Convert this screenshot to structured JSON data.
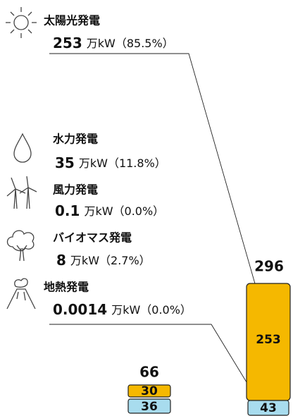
{
  "items": [
    {
      "name": "太陽光発電",
      "value": "253",
      "unit": "万kW",
      "share": "（85.5%）"
    },
    {
      "name": "水力発電",
      "value": "35",
      "unit": "万kW",
      "share": "（11.8%）"
    },
    {
      "name": "風力発電",
      "value": "0.1",
      "unit": "万kW",
      "share": "（0.0%）"
    },
    {
      "name": "バイオマス発電",
      "value": "8",
      "unit": "万kW",
      "share": "（2.7%）"
    },
    {
      "name": "地熱発電",
      "value": "0.0014",
      "unit": "万kW",
      "share": "（0.0%）"
    }
  ],
  "bars": [
    {
      "total": 66,
      "segments": [
        30,
        36
      ]
    },
    {
      "total": 296,
      "segments": [
        253,
        43
      ]
    }
  ]
}
